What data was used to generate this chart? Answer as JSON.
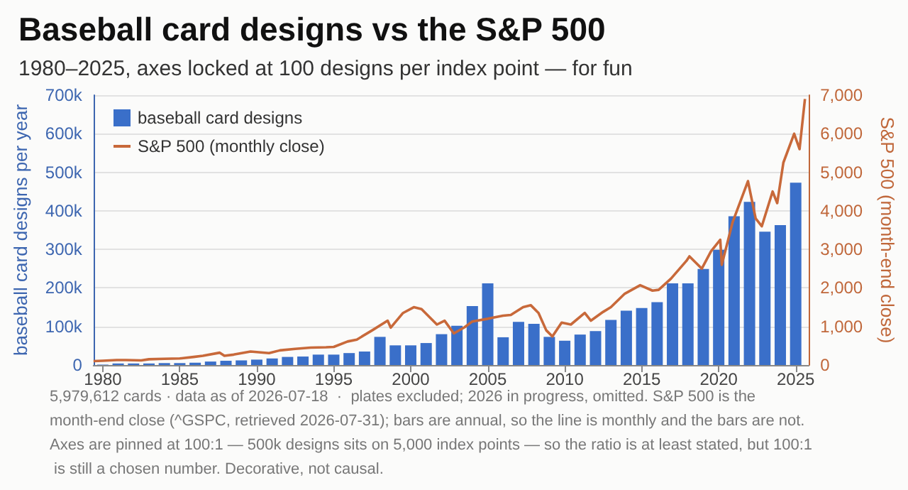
{
  "chart_data": {
    "type": "bar",
    "title": "Baseball card designs vs the S&P 500",
    "subtitle": "1980–2025, axes locked at 100 designs per index point — for fun",
    "ylabel": "baseball card designs per year",
    "y2label": "S&P 500 (month-end close)",
    "annotations": [
      "5,979,612 cards · data as of 2026-07-18  ·  plates excluded; 2026 in progress, omitted. S&P 500 is the month-end close (^GSPC, retrieved 2026-07-31); bars are annual, so the line is monthly and the bars are not. Axes are pinned at 100:1 — 500k designs sits on 5,000 index points — so the ratio is at least stated, but 100:1 is still a chosen number. Decorative, not causal."
    ],
    "xlim": [
      1979.4,
      2025.85
    ],
    "xticks": [
      1980,
      1985,
      1990,
      1995,
      2000,
      2005,
      2010,
      2015,
      2020,
      2025
    ],
    "ylim": [
      0,
      700000
    ],
    "yticks": [
      0,
      {
        "value": 100000,
        "label": "100k"
      },
      {
        "value": 200000,
        "label": "200k"
      },
      {
        "value": 300000,
        "label": "300k"
      },
      {
        "value": 400000,
        "label": "400k"
      },
      {
        "value": 500000,
        "label": "500k"
      },
      {
        "value": 600000,
        "label": "600k"
      },
      {
        "value": 700000,
        "label": "700k"
      }
    ],
    "y2lim": [
      0,
      7000
    ],
    "y2ticks": [
      0,
      {
        "value": 1000,
        "label": "1,000"
      },
      {
        "value": 2000,
        "label": "2,000"
      },
      {
        "value": 3000,
        "label": "3,000"
      },
      {
        "value": 4000,
        "label": "4,000"
      },
      {
        "value": 5000,
        "label": "5,000"
      },
      {
        "value": 6000,
        "label": "6,000"
      },
      {
        "value": 7000,
        "label": "7,000"
      }
    ],
    "grid": "y",
    "legend": "top left",
    "series": [
      {
        "name": "baseball card designs",
        "color": "#3a6fc9",
        "x": [
          1980,
          1981,
          1982,
          1983,
          1984,
          1985,
          1986,
          1987,
          1988,
          1989,
          1990,
          1991,
          1992,
          1993,
          1994,
          1995,
          1996,
          1997,
          1998,
          1999,
          2000,
          2001,
          2002,
          2003,
          2004,
          2005,
          2006,
          2007,
          2008,
          2009,
          2010,
          2011,
          2012,
          2013,
          2014,
          2015,
          2016,
          2017,
          2018,
          2019,
          2020,
          2021,
          2022,
          2023,
          2024,
          2025
        ],
        "values": [
          1000,
          4000,
          4000,
          4000,
          5000,
          5000,
          6000,
          9000,
          11000,
          12000,
          14000,
          17000,
          21000,
          22000,
          27000,
          27000,
          31000,
          35000,
          73000,
          51000,
          51000,
          57000,
          80000,
          102000,
          153000,
          212000,
          72000,
          112000,
          107000,
          73000,
          63000,
          79000,
          88000,
          117000,
          141000,
          148000,
          163000,
          212000,
          212000,
          249000,
          299000,
          386000,
          423000,
          346000,
          363000,
          473000
        ]
      },
      {
        "name": "S&P 500 (monthly close)",
        "type": "line",
        "axis": "y2",
        "color": "#c8693a",
        "x": [
          1979.4,
          1980,
          1980.9,
          1981.5,
          1982.5,
          1983,
          1984,
          1985,
          1985.9,
          1986.5,
          1987.6,
          1987.9,
          1988.5,
          1989.6,
          1990.8,
          1991.5,
          1992.5,
          1993.5,
          1994.5,
          1995,
          1995.9,
          1996.5,
          1997.5,
          1998.5,
          1998.7,
          1999.5,
          2000.2,
          2000.7,
          2001.7,
          2002.2,
          2002.8,
          2003.5,
          2004,
          2005,
          2006,
          2006.5,
          2007.3,
          2007.8,
          2008.3,
          2008.8,
          2009.2,
          2009.8,
          2010.4,
          2011.3,
          2011.7,
          2012.5,
          2013,
          2013.9,
          2014.9,
          2015.7,
          2016.1,
          2016.9,
          2017.9,
          2018.1,
          2018.9,
          2019.5,
          2020.1,
          2020.2,
          2020.9,
          2021.9,
          2022.4,
          2022.8,
          2023.5,
          2023.8,
          2024.2,
          2024.9,
          2025.25,
          2025.6
        ],
        "values": [
          100,
          110,
          130,
          130,
          120,
          150,
          160,
          170,
          210,
          240,
          320,
          240,
          270,
          350,
          310,
          380,
          420,
          450,
          460,
          470,
          610,
          660,
          900,
          1150,
          970,
          1350,
          1500,
          1450,
          1050,
          1150,
          820,
          980,
          1130,
          1200,
          1280,
          1300,
          1500,
          1550,
          1350,
          900,
          740,
          1100,
          1050,
          1350,
          1150,
          1380,
          1500,
          1850,
          2070,
          1930,
          1950,
          2240,
          2700,
          2820,
          2500,
          2950,
          3250,
          2600,
          3700,
          4770,
          3800,
          3600,
          4500,
          4200,
          5250,
          6000,
          5600,
          6900
        ]
      }
    ]
  }
}
